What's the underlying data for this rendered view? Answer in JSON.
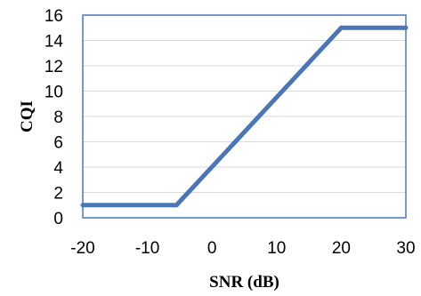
{
  "chart_data": {
    "type": "line",
    "title": "",
    "xlabel": "SNR (dB)",
    "ylabel": "CQI",
    "xlim": [
      -20,
      30
    ],
    "ylim": [
      0,
      16
    ],
    "xticks": [
      -20,
      -10,
      0,
      10,
      20,
      30
    ],
    "yticks": [
      0,
      2,
      4,
      6,
      8,
      10,
      12,
      14,
      16
    ],
    "grid": "horizontal",
    "legend": "none",
    "series": [
      {
        "color": "#4a76b8",
        "x": [
          -20,
          -5.5,
          20,
          30
        ],
        "y": [
          1,
          1,
          15,
          15
        ]
      }
    ]
  }
}
